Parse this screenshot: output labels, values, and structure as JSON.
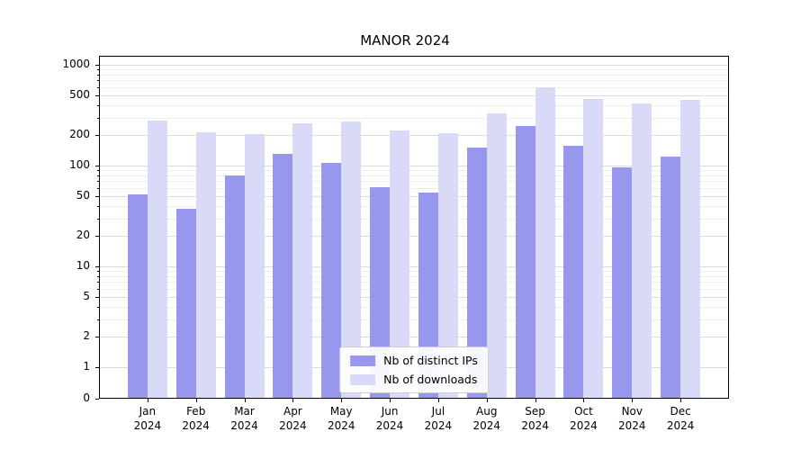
{
  "chart_data": {
    "type": "bar",
    "title": "MANOR 2024",
    "categories": [
      "Jan",
      "Feb",
      "Mar",
      "Apr",
      "May",
      "Jun",
      "Jul",
      "Aug",
      "Sep",
      "Oct",
      "Nov",
      "Dec"
    ],
    "category_year": "2024",
    "series": [
      {
        "name": "Nb of distinct IPs",
        "color": "#9797ee",
        "values": [
          52,
          37,
          80,
          130,
          107,
          61,
          54,
          150,
          245,
          158,
          95,
          122
        ]
      },
      {
        "name": "Nb of downloads",
        "color": "#d9d9f8",
        "values": [
          280,
          215,
          205,
          265,
          275,
          225,
          210,
          330,
          600,
          460,
          415,
          445
        ]
      }
    ],
    "yscale": "symlog",
    "yticks": [
      0,
      1,
      2,
      5,
      10,
      20,
      50,
      100,
      200,
      500,
      1000
    ],
    "ytick_labels": [
      "0",
      "1",
      "2",
      "5",
      "10",
      "20",
      "50",
      "100",
      "200",
      "500",
      "1000"
    ],
    "ylim": [
      0,
      1000
    ],
    "grid": true,
    "legend_position": "lower center"
  }
}
